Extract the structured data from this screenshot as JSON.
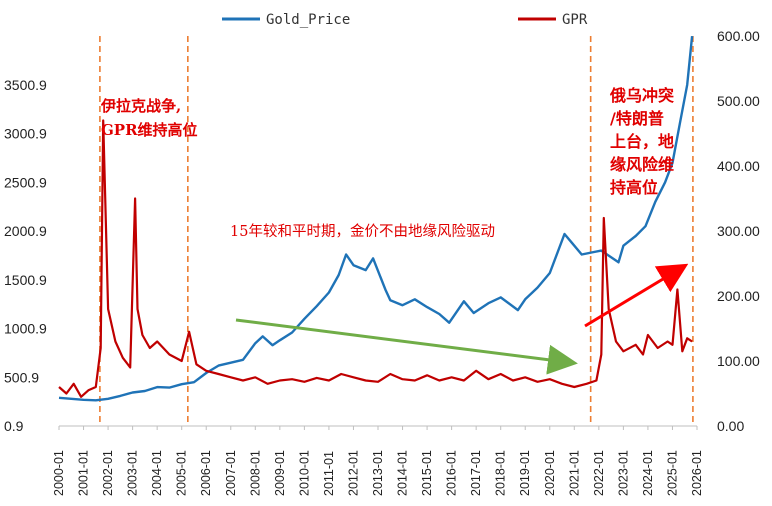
{
  "chart_data": {
    "type": "line",
    "title": "",
    "legend": [
      {
        "name": "Gold_Price",
        "color": "#1f73b7"
      },
      {
        "name": "GPR",
        "color": "#c00000"
      }
    ],
    "left_axis": {
      "ticks": [
        "0.9",
        "500.9",
        "1000.9",
        "1500.9",
        "2000.9",
        "2500.9",
        "3000.9",
        "3500.9"
      ],
      "range": [
        0.9,
        4000.9
      ]
    },
    "right_axis": {
      "ticks": [
        "0.00",
        "100.00",
        "200.00",
        "300.00",
        "400.00",
        "500.00",
        "600.00"
      ],
      "range": [
        0,
        600
      ]
    },
    "x_labels": [
      "2000-01",
      "2001-01",
      "2002-01",
      "2003-01",
      "2004-01",
      "2005-01",
      "2006-01",
      "2007-01",
      "2008-01",
      "2009-01",
      "2010-01",
      "2011-01",
      "2012-01",
      "2013-01",
      "2014-01",
      "2015-01",
      "2016-01",
      "2017-01",
      "2018-01",
      "2019-01",
      "2020-01",
      "2021-01",
      "2022-01",
      "2023-01",
      "2024-01",
      "2025-01",
      "2026-01"
    ],
    "series": [
      {
        "name": "Gold_Price",
        "axis": "left",
        "x": [
          2000.0,
          2000.5,
          2001.0,
          2001.5,
          2002.0,
          2002.5,
          2003.0,
          2003.5,
          2004.0,
          2004.5,
          2005.0,
          2005.5,
          2006.0,
          2006.5,
          2007.0,
          2007.5,
          2008.0,
          2008.3,
          2008.7,
          2009.0,
          2009.5,
          2010.0,
          2010.5,
          2011.0,
          2011.4,
          2011.7,
          2012.0,
          2012.5,
          2012.8,
          2013.3,
          2013.5,
          2014.0,
          2014.5,
          2015.0,
          2015.5,
          2015.9,
          2016.5,
          2016.9,
          2017.5,
          2018.0,
          2018.7,
          2019.0,
          2019.5,
          2020.0,
          2020.6,
          2020.9,
          2021.3,
          2021.7,
          2022.1,
          2022.8,
          2023.0,
          2023.5,
          2023.9,
          2024.3,
          2024.7,
          2025.0,
          2025.3,
          2025.6,
          2025.8
        ],
        "values": [
          290,
          280,
          270,
          265,
          280,
          310,
          345,
          360,
          400,
          395,
          430,
          450,
          545,
          620,
          650,
          680,
          850,
          920,
          830,
          880,
          960,
          1100,
          1230,
          1370,
          1550,
          1760,
          1650,
          1600,
          1720,
          1400,
          1290,
          1240,
          1300,
          1220,
          1150,
          1060,
          1280,
          1160,
          1260,
          1320,
          1190,
          1300,
          1420,
          1570,
          1970,
          1880,
          1760,
          1780,
          1800,
          1680,
          1850,
          1950,
          2050,
          2300,
          2500,
          2700,
          3100,
          3500,
          4000
        ]
      },
      {
        "name": "GPR",
        "axis": "right",
        "x": [
          2000.0,
          2000.3,
          2000.6,
          2000.9,
          2001.2,
          2001.5,
          2001.7,
          2001.8,
          2002.0,
          2002.3,
          2002.6,
          2002.9,
          2003.1,
          2003.2,
          2003.4,
          2003.7,
          2004.0,
          2004.5,
          2005.0,
          2005.3,
          2005.6,
          2006.0,
          2006.5,
          2007.0,
          2007.5,
          2008.0,
          2008.5,
          2009.0,
          2009.5,
          2010.0,
          2010.5,
          2011.0,
          2011.5,
          2012.0,
          2012.5,
          2013.0,
          2013.5,
          2014.0,
          2014.5,
          2015.0,
          2015.5,
          2016.0,
          2016.5,
          2017.0,
          2017.5,
          2018.0,
          2018.5,
          2019.0,
          2019.5,
          2020.0,
          2020.5,
          2021.0,
          2021.5,
          2021.9,
          2022.1,
          2022.2,
          2022.4,
          2022.7,
          2023.0,
          2023.5,
          2023.8,
          2024.0,
          2024.4,
          2024.8,
          2025.0,
          2025.2,
          2025.4,
          2025.6,
          2025.8
        ],
        "values": [
          60,
          50,
          65,
          45,
          55,
          60,
          120,
          470,
          180,
          130,
          105,
          90,
          350,
          180,
          140,
          120,
          130,
          110,
          100,
          145,
          95,
          85,
          80,
          75,
          70,
          75,
          65,
          70,
          72,
          68,
          74,
          70,
          80,
          75,
          70,
          68,
          80,
          72,
          70,
          78,
          70,
          75,
          70,
          85,
          72,
          80,
          70,
          75,
          68,
          72,
          65,
          60,
          65,
          70,
          110,
          320,
          180,
          130,
          115,
          125,
          110,
          140,
          120,
          130,
          125,
          210,
          115,
          135,
          130
        ]
      }
    ],
    "event_lines": [
      "2001-09",
      "2005-04",
      "2021-09",
      "2025-11"
    ],
    "annotations": {
      "iraq": [
        "伊拉克战争,",
        "GPR维持高位"
      ],
      "calm": "15年较和平时期，金价不由地缘风险驱动",
      "russia": [
        "俄乌冲突",
        "/特朗普",
        "上台，地",
        "缘风险维",
        "持高位"
      ]
    }
  }
}
